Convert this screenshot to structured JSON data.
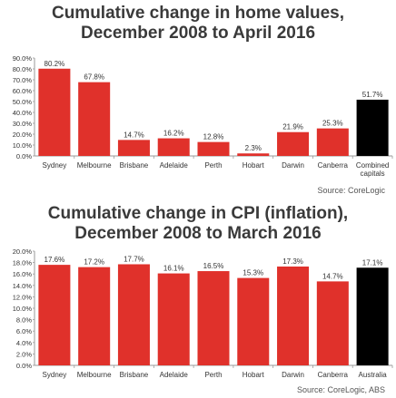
{
  "colors": {
    "bar": "#e0312b",
    "highlight": "#000000",
    "axis": "#999999",
    "text": "#333333"
  },
  "chart_data": [
    {
      "type": "bar",
      "title": [
        "Cumulative change in home values,",
        "December 2008 to April 2016"
      ],
      "source": "Source: CoreLogic",
      "categories": [
        "Sydney",
        "Melbourne",
        "Brisbane",
        "Adelaide",
        "Perth",
        "Hobart",
        "Darwin",
        "Canberra",
        "Combined\ncapitals"
      ],
      "values": [
        80.2,
        67.8,
        14.7,
        16.2,
        12.8,
        2.3,
        21.9,
        25.3,
        51.7
      ],
      "data_labels": [
        "80.2%",
        "67.8%",
        "14.7%",
        "16.2%",
        "12.8%",
        "2.3%",
        "21.9%",
        "25.3%",
        "51.7%"
      ],
      "highlight_index": 8,
      "ylim": [
        0,
        90
      ],
      "yticks": [
        "0.0%",
        "10.0%",
        "20.0%",
        "30.0%",
        "40.0%",
        "50.0%",
        "60.0%",
        "70.0%",
        "80.0%",
        "90.0%"
      ],
      "grid": false
    },
    {
      "type": "bar",
      "title": [
        "Cumulative change in CPI (inflation),",
        "December 2008 to March 2016"
      ],
      "source": "Source: CoreLogic, ABS",
      "categories": [
        "Sydney",
        "Melbourne",
        "Brisbane",
        "Adelaide",
        "Perth",
        "Hobart",
        "Darwin",
        "Canberra",
        "Australia"
      ],
      "values": [
        17.6,
        17.2,
        17.7,
        16.1,
        16.5,
        15.3,
        17.3,
        14.7,
        17.1
      ],
      "data_labels": [
        "17.6%",
        "17.2%",
        "17.7%",
        "16.1%",
        "16.5%",
        "15.3%",
        "17.3%",
        "14.7%",
        "17.1%"
      ],
      "highlight_index": 8,
      "ylim": [
        0,
        20
      ],
      "yticks": [
        "0.0%",
        "2.0%",
        "4.0%",
        "6.0%",
        "8.0%",
        "10.0%",
        "12.0%",
        "14.0%",
        "16.0%",
        "18.0%",
        "20.0%"
      ],
      "grid": false
    }
  ]
}
